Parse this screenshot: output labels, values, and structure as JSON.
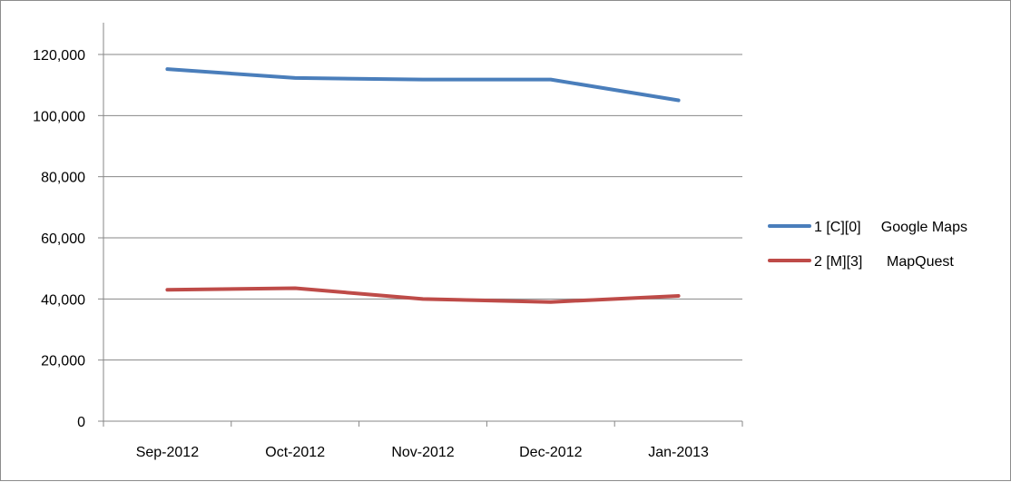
{
  "chart_data": {
    "type": "line",
    "title": "",
    "xlabel": "",
    "ylabel": "",
    "categories": [
      "Sep-2012",
      "Oct-2012",
      "Nov-2012",
      "Dec-2012",
      "Jan-2013"
    ],
    "ylim": [
      0,
      120000
    ],
    "yticks": [
      0,
      20000,
      40000,
      60000,
      80000,
      100000,
      120000
    ],
    "ytick_labels": [
      "0",
      "20,000",
      "40,000",
      "60,000",
      "80,000",
      "100,000",
      "120,000"
    ],
    "grid": "horizontal",
    "legend_position": "right",
    "series": [
      {
        "name": "1 [C][0]     Google Maps",
        "color": "#4a7ebb",
        "values": [
          115200,
          112300,
          111800,
          111800,
          105000
        ]
      },
      {
        "name": "2 [M][3]      MapQuest",
        "color": "#be4b48",
        "values": [
          43000,
          43500,
          40000,
          39000,
          41000
        ]
      }
    ]
  }
}
